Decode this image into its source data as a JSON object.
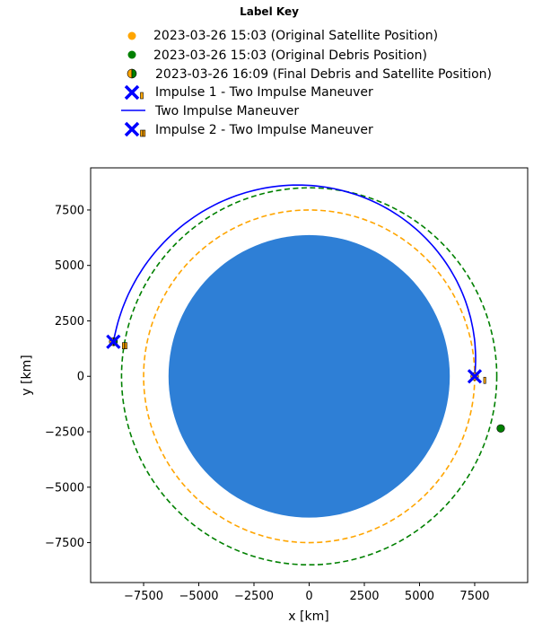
{
  "legend": {
    "title": "Label Key",
    "entries": [
      {
        "id": "orig-sat",
        "label": "2023-03-26 15:03 (Original Satellite Position)"
      },
      {
        "id": "orig-debris",
        "label": "2023-03-26 15:03 (Original Debris Position)"
      },
      {
        "id": "final",
        "label": "2023-03-26 16:09 (Final Debris and Satellite Position)"
      },
      {
        "id": "impulse1",
        "label": "Impulse 1 - Two Impulse Maneuver"
      },
      {
        "id": "transfer",
        "label": "Two Impulse Maneuver"
      },
      {
        "id": "impulse2",
        "label": "Impulse 2 - Two Impulse Maneuver"
      }
    ]
  },
  "chart_data": {
    "type": "scatter",
    "title": "",
    "xlabel": "x [km]",
    "ylabel": "y [km]",
    "xlim": [
      -9900,
      9900
    ],
    "ylim": [
      -9300,
      9400
    ],
    "xticks": [
      -7500,
      -5000,
      -2500,
      0,
      2500,
      5000,
      7500
    ],
    "xtick_labels": [
      "−7500",
      "−5000",
      "−2500",
      "0",
      "2500",
      "5000",
      "7500"
    ],
    "yticks": [
      -7500,
      -5000,
      -2500,
      0,
      2500,
      5000,
      7500
    ],
    "ytick_labels": [
      "−7500",
      "−5000",
      "−2500",
      "0",
      "2500",
      "5000",
      "7500"
    ],
    "grid": false,
    "earth": {
      "radius": 6371,
      "color": "#2e7fd6"
    },
    "orbits": [
      {
        "name": "Satellite Orbit",
        "radius": 7500,
        "color": "#ffa500",
        "style": "dashed"
      },
      {
        "name": "Debris Orbit",
        "radius": 8500,
        "color": "#008000",
        "style": "dashed"
      }
    ],
    "transfer_arc": {
      "color": "#0000ff",
      "start_radius": 7500,
      "start_angle_deg": 0,
      "end_radius": 9000,
      "end_angle_deg": 170,
      "points": 120
    },
    "points": [
      {
        "id": "orig-sat",
        "x": 7500,
        "y": 0,
        "color": "#ffa500",
        "marker": "circle"
      },
      {
        "id": "orig-debris",
        "x": 8680,
        "y": -2350,
        "color": "#008000",
        "marker": "circle"
      },
      {
        "id": "final-sat",
        "x": -8870,
        "y": 1560,
        "color": "#ffa500",
        "marker": "circle"
      },
      {
        "id": "final-debris",
        "x": -8870,
        "y": 1560,
        "color": "#008000",
        "marker": "circle"
      },
      {
        "id": "impulse1",
        "x": 7500,
        "y": 0,
        "color": "#0000ff",
        "marker": "x"
      },
      {
        "id": "impulse2",
        "x": -8870,
        "y": 1560,
        "color": "#0000ff",
        "marker": "x"
      }
    ]
  }
}
